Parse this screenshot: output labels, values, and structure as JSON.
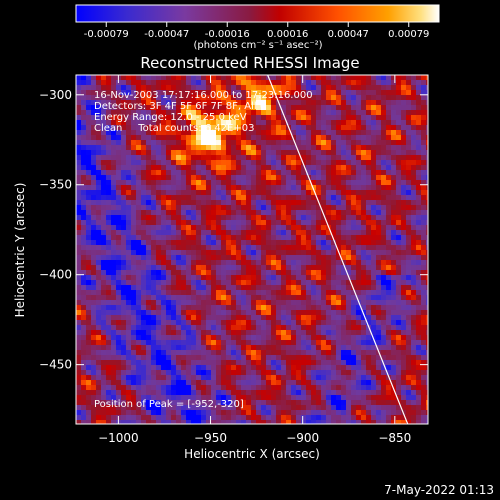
{
  "colors": {
    "background": "#000000",
    "foreground": "#ffffff",
    "colormap": [
      "#0000ff",
      "#5a2ea6",
      "#7a3aa0",
      "#b01010",
      "#ff4000",
      "#ff9a00",
      "#ffe060",
      "#ffffff"
    ]
  },
  "colorbar": {
    "ticks": [
      "-0.00079",
      "-0.00047",
      "-0.00016",
      "0.00016",
      "0.00047",
      "0.00079"
    ],
    "unit_label": "(photons cm⁻² s⁻¹ asec⁻²)"
  },
  "plot": {
    "title": "Reconstructed RHESSI Image",
    "xlabel": "Heliocentric X (arcsec)",
    "ylabel": "Heliocentric Y (arcsec)",
    "info_lines": [
      "16-Nov-2003 17:17:16.000 to 17:23:16.000",
      "Detectors: 3F 4F 5F 6F 7F 8F, All 0",
      "Energy Range: 12.0 - 25.0 keV",
      "Clean     Total counts: 6.42E+03"
    ],
    "peak_text": "Position of Peak = [-952,-320]"
  },
  "footer": {
    "date": "7-May-2022 01:13"
  },
  "chart_data": {
    "type": "heatmap",
    "title": "Reconstructed RHESSI Image",
    "xlabel": "Heliocentric X (arcsec)",
    "ylabel": "Heliocentric Y (arcsec)",
    "xlim": [
      -1023,
      -832
    ],
    "ylim": [
      -483,
      -289
    ],
    "xticks": [
      -1000,
      -950,
      -900,
      -850
    ],
    "yticks": [
      -300,
      -350,
      -400,
      -450
    ],
    "xtick_labels": [
      "−1000",
      "−950",
      "−900",
      "−850"
    ],
    "ytick_labels": [
      "−300",
      "−350",
      "−400",
      "−450"
    ],
    "colorbar_range": [
      -0.00079,
      0.00079
    ],
    "peak_position": [
      -952,
      -320
    ],
    "limb_line": [
      [
        -919,
        -289
      ],
      [
        -843,
        -483
      ]
    ],
    "grid": false
  }
}
